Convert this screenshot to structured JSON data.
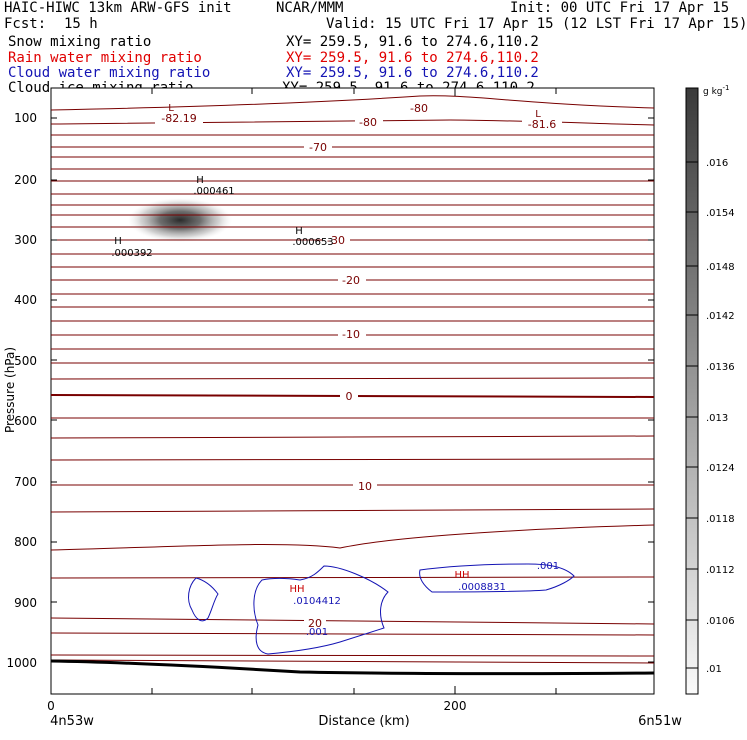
{
  "header": {
    "title_left": "HAIC-HIWC 13km ARW-GFS init",
    "title_mid": "NCAR/MMM",
    "init": "Init: 00 UTC Fri 17 Apr 15",
    "fcst_label": "Fcst:",
    "fcst_value": "15 h",
    "valid": "Valid: 15 UTC Fri 17 Apr 15 (12 LST Fri 17 Apr 15)"
  },
  "legend": [
    {
      "label": "Snow mixing ratio",
      "xy": "XY= 259.5, 91.6 to 274.6,110.2",
      "color": "#000000"
    },
    {
      "label": "Rain water mixing ratio",
      "xy": "XY= 259.5, 91.6 to 274.6,110.2",
      "color": "#e00000"
    },
    {
      "label": "Cloud water mixing ratio",
      "xy": "XY= 259.5, 91.6 to 274.6,110.2",
      "color": "#1414b4"
    },
    {
      "label": "Cloud ice mixing ratio",
      "xy": "XY= 259.5, 91.6 to 274.6,110.2",
      "color": "#000000"
    }
  ],
  "axes": {
    "ylabel": "Pressure (hPa)",
    "xlabel": "Distance (km)",
    "yticks": [
      "100",
      "200",
      "300",
      "400",
      "500",
      "600",
      "700",
      "800",
      "900",
      "1000"
    ],
    "xticks": [
      "0",
      "200"
    ],
    "left_end": "4n53w",
    "right_end": "6n51w"
  },
  "colorbar": {
    "unit": "g kg",
    "unit_sup": "-1",
    "labels": [
      ".016",
      ".0154",
      ".0148",
      ".0142",
      ".0136",
      ".013",
      ".0124",
      ".0118",
      ".0112",
      ".0106",
      ".01"
    ]
  },
  "contour_labels": {
    "temp": [
      "-82.19",
      "-80",
      "-80",
      "-81.6",
      "-70",
      "-30",
      "-20",
      "-10",
      "0",
      "10",
      "20"
    ],
    "markers": {
      "h": "H",
      "l": "L",
      "hh": "HH"
    },
    "maxima": [
      ".000461",
      ".000392",
      ".000653",
      ".001",
      ".001",
      ".0104412",
      ".0008831"
    ]
  },
  "colors": {
    "temperature": "#780000",
    "cloud_water": "#1414b4",
    "rain": "#c80000"
  }
}
